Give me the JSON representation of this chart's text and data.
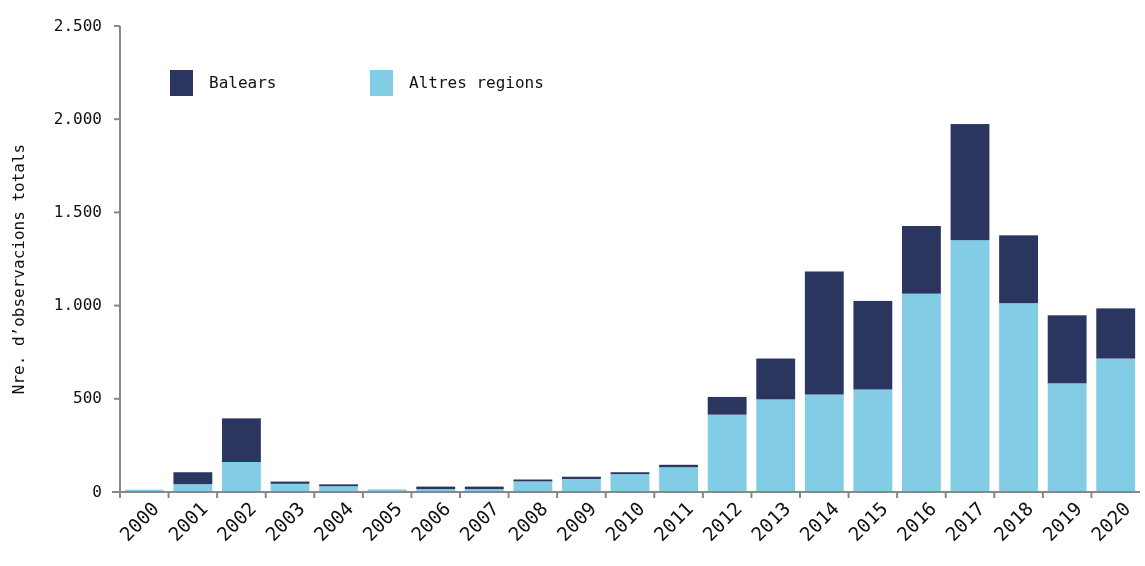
{
  "chart_data": {
    "type": "bar",
    "stacked": true,
    "ylabel": "Nre. d’observacions totals",
    "categories": [
      "2000",
      "2001",
      "2002",
      "2003",
      "2004",
      "2005",
      "2006",
      "2007",
      "2008",
      "2009",
      "2010",
      "2011",
      "2012",
      "2013",
      "2014",
      "2015",
      "2016",
      "2017",
      "2018",
      "2019",
      "2020"
    ],
    "series": [
      {
        "name": "Altres regions",
        "color": "#82cde5",
        "values": [
          12,
          42,
          161,
          44,
          31,
          14,
          16,
          16,
          57,
          70,
          96,
          133,
          415,
          497,
          523,
          550,
          1064,
          1351,
          1013,
          583,
          716
        ]
      },
      {
        "name": "Balears",
        "color": "#2a365f",
        "values": [
          null,
          64,
          234,
          12,
          10,
          null,
          13,
          13,
          10,
          12,
          10,
          13,
          95,
          219,
          660,
          475,
          363,
          623,
          364,
          365,
          269
        ]
      }
    ],
    "ylim": [
      0,
      2500
    ],
    "yticks": [
      {
        "value": 0,
        "label": "0"
      },
      {
        "value": 500,
        "label": "500"
      },
      {
        "value": 1000,
        "label": "1.000"
      },
      {
        "value": 1500,
        "label": "1.500"
      },
      {
        "value": 2000,
        "label": "2.000"
      },
      {
        "value": 2500,
        "label": "2.500"
      }
    ],
    "legend": "top left",
    "grid": false
  }
}
